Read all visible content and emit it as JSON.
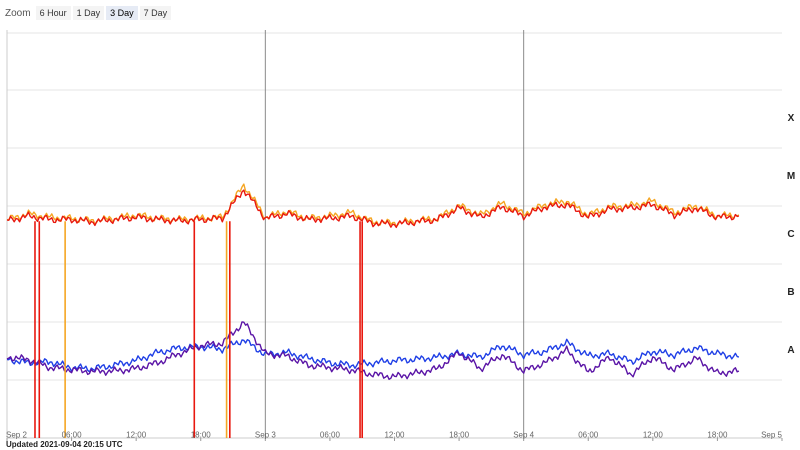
{
  "zoom": {
    "label": "Zoom",
    "options": [
      "6 Hour",
      "1 Day",
      "3 Day",
      "7 Day"
    ],
    "selected": "3 Day"
  },
  "updated": "Updated 2021-09-04 20:15 UTC",
  "colors": {
    "orange": "#f5a623",
    "red": "#e8180f",
    "blue": "#1f3fe6",
    "purple": "#5a14a6",
    "grid": "#e4e4e4",
    "day_line": "#8a8a8a"
  },
  "chart_data": {
    "type": "line",
    "title": "",
    "xlabel": "",
    "ylabel": "",
    "x_range": [
      "Sep 2 00:00",
      "Sep 5 00:00"
    ],
    "x_ticks": [
      "Sep 2",
      "06:00",
      "12:00",
      "18:00",
      "Sep 3",
      "06:00",
      "12:00",
      "18:00",
      "Sep 4",
      "06:00",
      "12:00",
      "18:00",
      "Sep 5"
    ],
    "y_scale": "log",
    "flare_class_labels": [
      "X",
      "M",
      "C",
      "B",
      "A"
    ],
    "grid": true,
    "series": [
      {
        "name": "",
        "color": "orange",
        "x_hours": [
          0,
          2,
          4,
          6,
          8,
          10,
          12,
          14,
          16,
          18,
          20,
          22,
          24,
          26,
          28,
          30,
          32,
          34,
          36,
          38,
          40,
          42,
          44,
          46,
          48,
          50,
          52,
          54,
          56,
          58,
          60,
          62,
          64,
          66,
          68
        ],
        "class_levels": [
          4.18,
          4.28,
          4.22,
          4.2,
          4.16,
          4.2,
          4.26,
          4.2,
          4.18,
          4.2,
          4.22,
          4.78,
          4.22,
          4.32,
          4.2,
          4.24,
          4.3,
          4.14,
          4.12,
          4.16,
          4.2,
          4.42,
          4.26,
          4.46,
          4.28,
          4.44,
          4.5,
          4.26,
          4.4,
          4.42,
          4.5,
          4.3,
          4.42,
          4.24,
          4.26
        ]
      },
      {
        "name": "",
        "color": "red",
        "x_hours": [
          0,
          2,
          4,
          6,
          8,
          10,
          12,
          14,
          16,
          18,
          20,
          22,
          24,
          26,
          28,
          30,
          32,
          34,
          36,
          38,
          40,
          42,
          44,
          46,
          48,
          50,
          52,
          54,
          56,
          58,
          60,
          62,
          64,
          66,
          68
        ],
        "class_levels": [
          4.16,
          4.24,
          4.18,
          4.18,
          4.14,
          4.18,
          4.22,
          4.18,
          4.16,
          4.18,
          4.2,
          4.7,
          4.2,
          4.28,
          4.18,
          4.2,
          4.24,
          4.12,
          4.1,
          4.14,
          4.18,
          4.38,
          4.22,
          4.4,
          4.24,
          4.4,
          4.44,
          4.22,
          4.36,
          4.38,
          4.44,
          4.26,
          4.38,
          4.22,
          4.24
        ]
      },
      {
        "name": "",
        "color": "blue",
        "x_hours": [
          0,
          2,
          4,
          6,
          8,
          10,
          12,
          14,
          16,
          18,
          20,
          22,
          24,
          26,
          28,
          30,
          32,
          34,
          36,
          38,
          40,
          42,
          44,
          46,
          48,
          50,
          52,
          54,
          56,
          58,
          60,
          62,
          64,
          66,
          68
        ],
        "class_levels": [
          1.76,
          1.7,
          1.72,
          1.62,
          1.6,
          1.66,
          1.74,
          1.88,
          1.96,
          1.98,
          1.94,
          2.1,
          1.84,
          1.88,
          1.78,
          1.7,
          1.66,
          1.7,
          1.74,
          1.76,
          1.8,
          1.86,
          1.8,
          2.0,
          1.84,
          1.9,
          2.05,
          1.82,
          1.86,
          1.72,
          1.9,
          1.84,
          1.96,
          1.86,
          1.8
        ]
      },
      {
        "name": "",
        "color": "purple",
        "x_hours": [
          0,
          2,
          4,
          6,
          8,
          10,
          12,
          14,
          16,
          18,
          20,
          22,
          24,
          26,
          28,
          30,
          32,
          34,
          36,
          38,
          40,
          42,
          44,
          46,
          48,
          50,
          52,
          54,
          56,
          58,
          60,
          62,
          64,
          66,
          68
        ],
        "class_levels": [
          1.8,
          1.76,
          1.62,
          1.58,
          1.55,
          1.56,
          1.6,
          1.7,
          1.86,
          2.0,
          2.04,
          2.4,
          1.86,
          1.82,
          1.66,
          1.62,
          1.58,
          1.5,
          1.46,
          1.52,
          1.6,
          1.88,
          1.6,
          1.84,
          1.56,
          1.7,
          1.92,
          1.54,
          1.8,
          1.5,
          1.8,
          1.58,
          1.78,
          1.52,
          1.56
        ]
      }
    ],
    "dropouts": [
      {
        "x_hour": 2.6,
        "color": "red"
      },
      {
        "x_hour": 3.0,
        "color": "red"
      },
      {
        "x_hour": 5.4,
        "color": "orange"
      },
      {
        "x_hour": 17.4,
        "color": "red"
      },
      {
        "x_hour": 20.4,
        "color": "orange"
      },
      {
        "x_hour": 20.7,
        "color": "red"
      },
      {
        "x_hour": 32.8,
        "color": "red"
      },
      {
        "x_hour": 33.0,
        "color": "red"
      }
    ]
  }
}
